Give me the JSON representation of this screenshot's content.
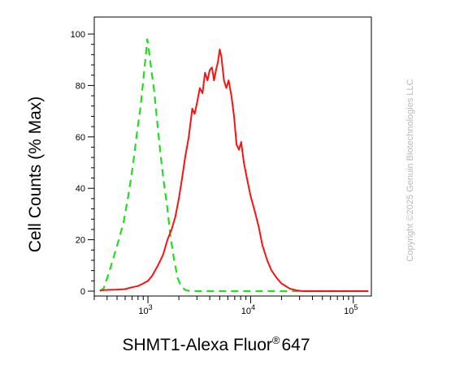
{
  "chart_data": {
    "type": "line",
    "title": "",
    "xlabel": "SHMT1-Alexa Fluor",
    "xlabel_sup": "®",
    "xlabel_suffix": "647",
    "ylabel": "Cell Counts (% Max)",
    "xscale": "log",
    "xlim": [
      300,
      150000
    ],
    "ylim": [
      0,
      105
    ],
    "x_ticks": [
      {
        "value": 1000,
        "base": "10",
        "exp": "3"
      },
      {
        "value": 10000,
        "base": "10",
        "exp": "4"
      },
      {
        "value": 100000,
        "base": "10",
        "exp": "5"
      }
    ],
    "y_ticks": [
      {
        "value": 0,
        "label": "0"
      },
      {
        "value": 20,
        "label": "20"
      },
      {
        "value": 40,
        "label": "40"
      },
      {
        "value": 60,
        "label": "60"
      },
      {
        "value": 80,
        "label": "80"
      },
      {
        "value": 100,
        "label": "100"
      }
    ],
    "grid": false,
    "legend": "none",
    "series": [
      {
        "color": "#22dd22",
        "style": "dashed",
        "points": [
          [
            340,
            0
          ],
          [
            370,
            1
          ],
          [
            400,
            5
          ],
          [
            430,
            9
          ],
          [
            470,
            14
          ],
          [
            520,
            20
          ],
          [
            580,
            27
          ],
          [
            650,
            38
          ],
          [
            720,
            50
          ],
          [
            790,
            63
          ],
          [
            850,
            72
          ],
          [
            900,
            82
          ],
          [
            950,
            91
          ],
          [
            985,
            98
          ],
          [
            1020,
            94
          ],
          [
            1080,
            86
          ],
          [
            1150,
            78
          ],
          [
            1230,
            66
          ],
          [
            1320,
            54
          ],
          [
            1420,
            43
          ],
          [
            1550,
            32
          ],
          [
            1650,
            22
          ],
          [
            1800,
            12
          ],
          [
            1950,
            5
          ],
          [
            2100,
            2
          ],
          [
            2300,
            0.5
          ],
          [
            2600,
            0
          ],
          [
            5000,
            0
          ],
          [
            10000,
            0
          ],
          [
            20000,
            0
          ],
          [
            40000,
            0
          ],
          [
            80000,
            0
          ],
          [
            140000,
            0
          ]
        ]
      },
      {
        "color": "#ff1111",
        "style": "solid",
        "points": [
          [
            340,
            0.3
          ],
          [
            420,
            0.5
          ],
          [
            500,
            0.6
          ],
          [
            600,
            0.8
          ],
          [
            700,
            1.5
          ],
          [
            800,
            2
          ],
          [
            900,
            3
          ],
          [
            1000,
            4
          ],
          [
            1100,
            6
          ],
          [
            1250,
            10
          ],
          [
            1400,
            14
          ],
          [
            1550,
            20
          ],
          [
            1700,
            24
          ],
          [
            1850,
            29
          ],
          [
            2000,
            36
          ],
          [
            2150,
            44
          ],
          [
            2300,
            52
          ],
          [
            2500,
            60
          ],
          [
            2700,
            71
          ],
          [
            2850,
            69
          ],
          [
            3000,
            73
          ],
          [
            3200,
            79
          ],
          [
            3400,
            77
          ],
          [
            3600,
            85
          ],
          [
            3800,
            82
          ],
          [
            4000,
            86
          ],
          [
            4200,
            87
          ],
          [
            4400,
            82
          ],
          [
            4600,
            86
          ],
          [
            4800,
            89
          ],
          [
            5000,
            94
          ],
          [
            5200,
            91
          ],
          [
            5500,
            82
          ],
          [
            5800,
            79
          ],
          [
            6100,
            82
          ],
          [
            6500,
            76
          ],
          [
            6900,
            68
          ],
          [
            7300,
            57
          ],
          [
            7700,
            55
          ],
          [
            8100,
            58
          ],
          [
            8600,
            50
          ],
          [
            9200,
            44
          ],
          [
            10000,
            37
          ],
          [
            11000,
            31
          ],
          [
            12000,
            25
          ],
          [
            13000,
            18
          ],
          [
            14500,
            12
          ],
          [
            16000,
            8
          ],
          [
            18000,
            5
          ],
          [
            20000,
            3
          ],
          [
            24000,
            1
          ],
          [
            28000,
            0.3
          ],
          [
            32000,
            0
          ],
          [
            60000,
            0
          ],
          [
            100000,
            0
          ],
          [
            140000,
            0
          ]
        ]
      }
    ]
  },
  "copyright": "Copyright ©2025 Genuin Biotechnologies LLC"
}
